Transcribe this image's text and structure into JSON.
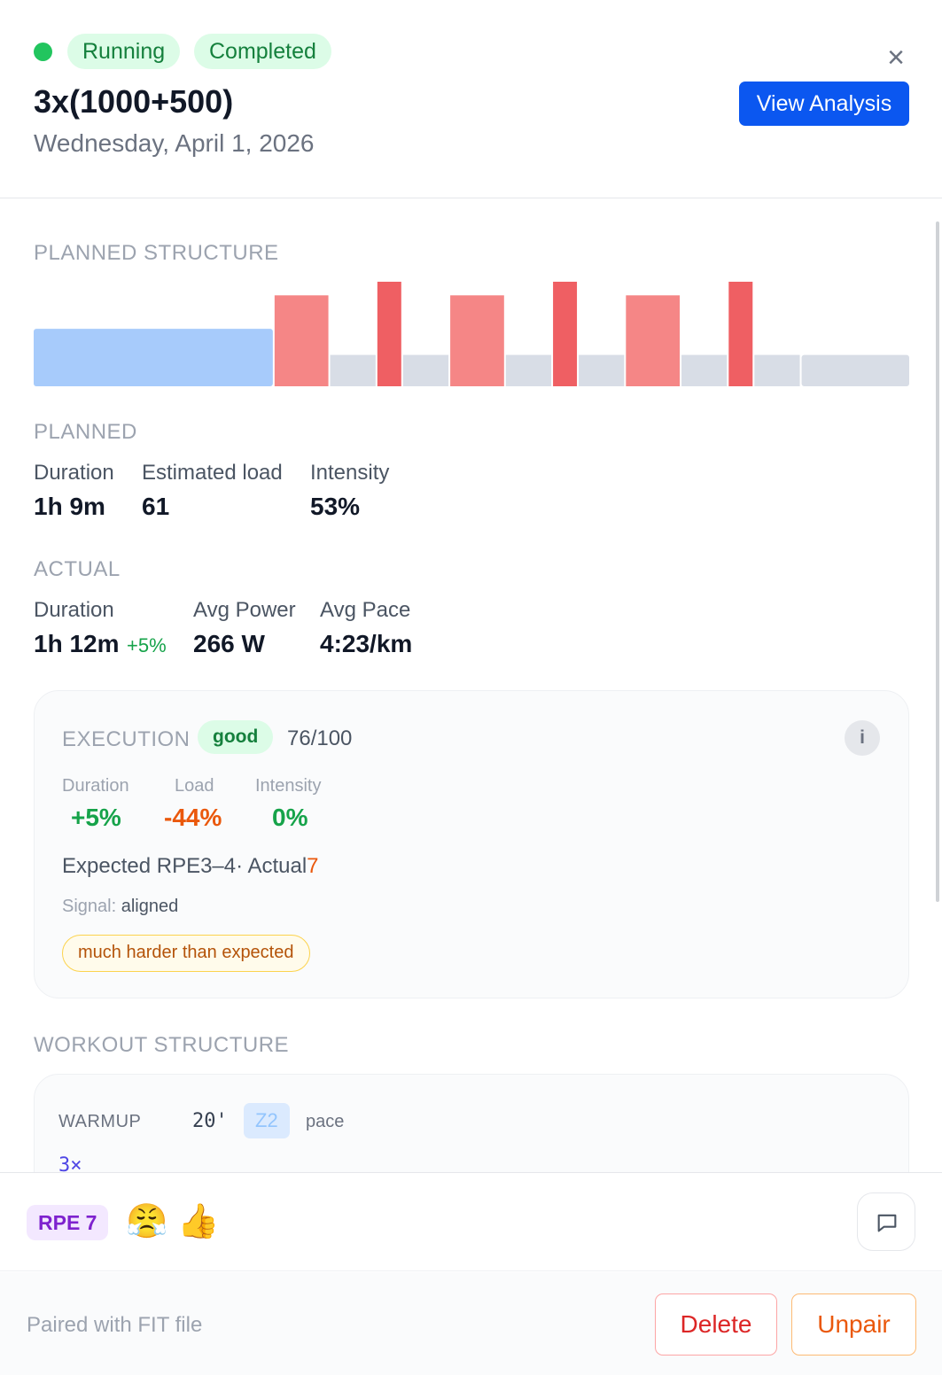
{
  "header": {
    "badges": {
      "sport": "Running",
      "status": "Completed"
    },
    "title": "3x(1000+500)",
    "date": "Wednesday, April 1, 2026",
    "view_analysis_label": "View Analysis",
    "close_label": "×",
    "status_color": "#22c55e"
  },
  "planned_structure": {
    "label": "PLANNED STRUCTURE",
    "segments": [
      {
        "type": "warmup",
        "duration": 20,
        "intensity": 0.55
      },
      {
        "type": "work",
        "duration": 4.5,
        "intensity": 0.87
      },
      {
        "type": "recovery",
        "duration": 3.8,
        "intensity": 0.3
      },
      {
        "type": "hard",
        "duration": 2,
        "intensity": 1.0
      },
      {
        "type": "recovery",
        "duration": 3.8,
        "intensity": 0.3
      },
      {
        "type": "work",
        "duration": 4.5,
        "intensity": 0.87
      },
      {
        "type": "recovery",
        "duration": 3.8,
        "intensity": 0.3
      },
      {
        "type": "hard",
        "duration": 2,
        "intensity": 1.0
      },
      {
        "type": "recovery",
        "duration": 3.8,
        "intensity": 0.3
      },
      {
        "type": "work",
        "duration": 4.5,
        "intensity": 0.87
      },
      {
        "type": "recovery",
        "duration": 3.8,
        "intensity": 0.3
      },
      {
        "type": "hard",
        "duration": 2,
        "intensity": 1.0
      },
      {
        "type": "recovery",
        "duration": 3.8,
        "intensity": 0.3
      },
      {
        "type": "cooldown",
        "duration": 9,
        "intensity": 0.3
      }
    ],
    "colors": {
      "warmup": "#a7cbfb",
      "work": "#f58686",
      "hard": "#ef5f63",
      "recovery": "#d8dde6",
      "cooldown": "#d8dde6"
    }
  },
  "planned": {
    "label": "PLANNED",
    "metrics": [
      {
        "label": "Duration",
        "value": "1h 9m"
      },
      {
        "label": "Estimated load",
        "value": "61"
      },
      {
        "label": "Intensity",
        "value": "53%"
      }
    ]
  },
  "actual": {
    "label": "ACTUAL",
    "metrics": [
      {
        "label": "Duration",
        "value": "1h 12m",
        "delta": "+5%"
      },
      {
        "label": "Avg Power",
        "value": "266 W"
      },
      {
        "label": "Avg Pace",
        "value": "4:23/km"
      }
    ]
  },
  "execution": {
    "label": "EXECUTION",
    "rating": "good",
    "score": "76/100",
    "info_label": "i",
    "metrics": [
      {
        "label": "Duration",
        "value": "+5%"
      },
      {
        "label": "Load",
        "value": "-44%"
      },
      {
        "label": "Intensity",
        "value": "0%"
      }
    ],
    "rpe_expected_text": "Expected RPE3–4· Actual",
    "rpe_actual": "7",
    "signal_label": "Signal:",
    "signal_value": "aligned",
    "warning": "much harder than expected"
  },
  "workout_structure": {
    "label": "WORKOUT STRUCTURE",
    "rows": [
      {
        "name": "WARMUP",
        "duration": "20'",
        "zone": "Z2",
        "metric": "pace"
      }
    ],
    "repeat_label": "3×"
  },
  "feedback": {
    "rpe_badge": "RPE 7",
    "emoji_1": "😤",
    "emoji_2": "👍"
  },
  "footer": {
    "paired_text": "Paired with FIT file",
    "delete_label": "Delete",
    "unpair_label": "Unpair"
  }
}
